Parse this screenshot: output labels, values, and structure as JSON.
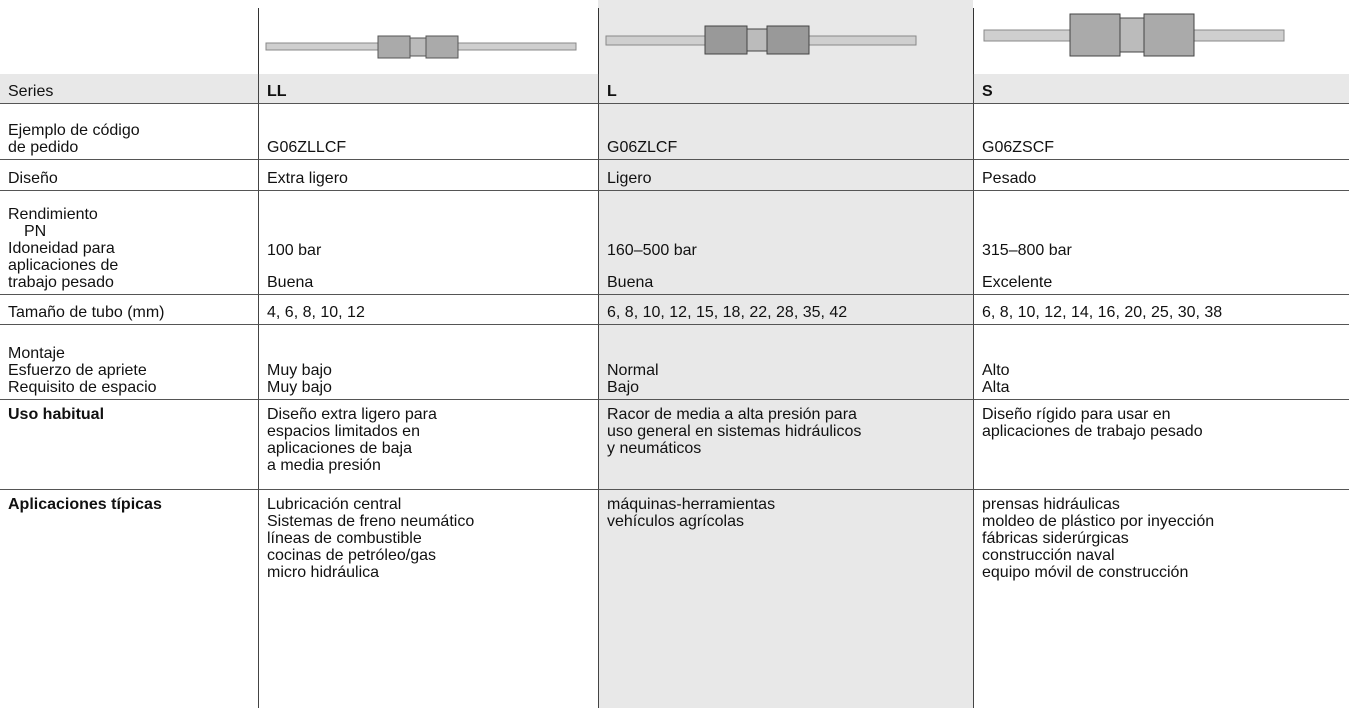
{
  "table": {
    "series_label": "Series",
    "columns": [
      "LL",
      "L",
      "S"
    ],
    "rows": [
      {
        "label": [
          "Ejemplo de código",
          "de pedido"
        ],
        "cells": [
          [
            "G06ZLLCF"
          ],
          [
            "G06ZLCF"
          ],
          [
            "G06ZSCF"
          ]
        ]
      },
      {
        "label": [
          "Diseño"
        ],
        "cells": [
          [
            "Extra ligero"
          ],
          [
            "Ligero"
          ],
          [
            "Pesado"
          ]
        ]
      },
      {
        "label": [
          "Rendimiento",
          "PN",
          "Idoneidad para",
          "aplicaciones de",
          "trabajo pesado"
        ],
        "cells": [
          [
            "100 bar",
            "Buena"
          ],
          [
            "160–500 bar",
            "Buena"
          ],
          [
            "315–800 bar",
            "Excelente"
          ]
        ]
      },
      {
        "label": [
          "Tamaño de tubo (mm)"
        ],
        "cells": [
          [
            "4, 6, 8, 10, 12"
          ],
          [
            "6, 8, 10, 12, 15, 18, 22, 28, 35, 42"
          ],
          [
            "6, 8, 10, 12, 14, 16, 20, 25, 30, 38"
          ]
        ]
      },
      {
        "label": [
          "Montaje",
          "Esfuerzo de apriete",
          "Requisito de espacio"
        ],
        "cells": [
          [
            "Muy bajo",
            "Muy bajo"
          ],
          [
            "Normal",
            "Bajo"
          ],
          [
            "Alto",
            "Alta"
          ]
        ]
      },
      {
        "label": [
          "Uso habitual"
        ],
        "cells": [
          [
            "Diseño extra ligero para",
            "espacios limitados en",
            "aplicaciones de baja",
            "a media presión"
          ],
          [
            "Racor de media a alta presión para",
            "uso general en sistemas hidráulicos",
            "y neumáticos"
          ],
          [
            "Diseño rígido para usar en",
            "aplicaciones de trabajo pesado"
          ]
        ]
      },
      {
        "label": [
          "Aplicaciones típicas"
        ],
        "cells": [
          [
            "Lubricación central",
            "Sistemas de freno neumático",
            "líneas de combustible",
            "cocinas de petróleo/gas",
            "micro hidráulica"
          ],
          [
            "máquinas-herramientas",
            "vehículos agrícolas"
          ],
          [
            "prensas hidráulicas",
            "moldeo de plástico por inyección",
            "fábricas siderúrgicas",
            "construcción naval",
            "equipo móvil de construcción"
          ]
        ]
      }
    ]
  }
}
